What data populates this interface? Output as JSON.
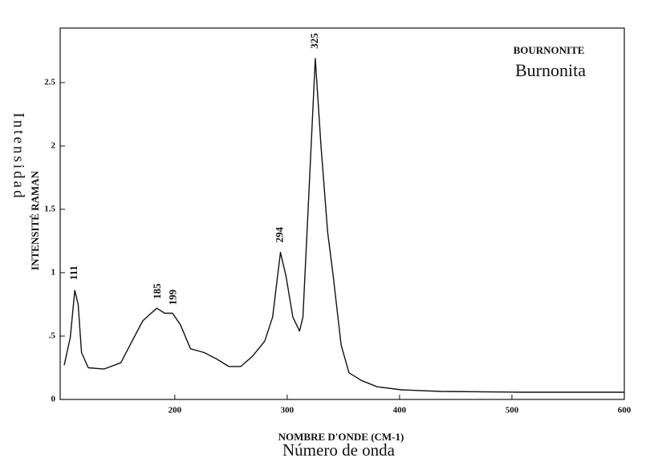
{
  "chart_data": {
    "type": "line",
    "title": "BOURNONITE",
    "subtitle": "Burnonita",
    "xlabel": "NOMBRE D'ONDE (CM-1)",
    "xlabel2": "Número de onda",
    "ylabel": "INTENSITÉ RAMAN",
    "ylabel2": "Intensidad",
    "x": [
      101.6,
      107,
      111,
      114,
      117,
      123,
      137,
      152,
      162,
      171.5,
      184,
      191,
      198,
      205,
      214,
      226,
      237,
      248,
      258.7,
      269,
      280,
      287,
      294,
      299,
      305,
      311,
      314,
      319,
      325,
      330,
      336,
      341,
      348,
      355,
      366,
      380,
      401.6,
      437,
      509,
      600
    ],
    "series": [
      {
        "color": "#111111",
        "values": [
          0.27,
          0.49,
          0.86,
          0.75,
          0.37,
          0.25,
          0.24,
          0.29,
          0.46,
          0.62,
          0.72,
          0.68,
          0.68,
          0.59,
          0.4,
          0.37,
          0.32,
          0.26,
          0.26,
          0.34,
          0.46,
          0.65,
          1.16,
          0.97,
          0.65,
          0.54,
          0.65,
          1.57,
          2.69,
          2.01,
          1.32,
          0.97,
          0.43,
          0.21,
          0.15,
          0.1,
          0.076,
          0.063,
          0.057,
          0.057
        ]
      }
    ],
    "peaks": [
      111,
      185,
      199,
      294,
      325
    ],
    "xlim": [
      98,
      600
    ],
    "ylim": [
      0,
      2.93
    ],
    "xticks": [
      200,
      300,
      400,
      500,
      600
    ],
    "yticks": [
      0,
      {
        "value": 0.5,
        "label": ".5"
      },
      1,
      1.5,
      2,
      2.5
    ]
  }
}
